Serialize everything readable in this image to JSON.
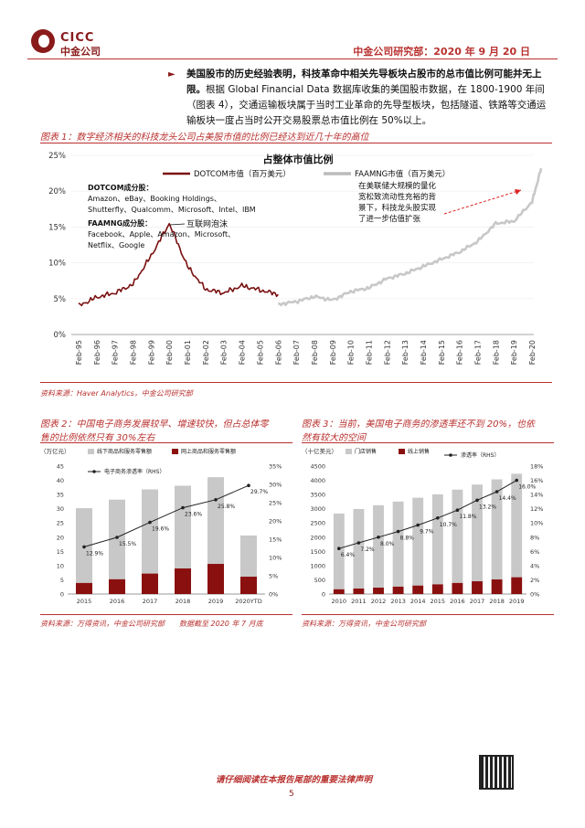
{
  "header": {
    "logo_en": "CICC",
    "logo_cn": "中金公司",
    "date_line": "中金公司研究部：2020 年 9 月 20 日"
  },
  "intro": {
    "bold": "美国股市的历史经验表明，科技革命中相关先导板块占股市的总市值比例可能并无上限。",
    "text": "根据 Global Financial Data 数据库收集的美国股市数据，在 1800-1900 年间（图表 4），交通运输板块属于当时工业革命的先导型板块，包括隧道、铁路等交通运输板块一度占当时公开交易股票总市值比例在 50%以上。"
  },
  "fig1": {
    "caption": "图表 1：数字经济相关的科技龙头公司占美股市值的比例已经达到近几十年的高位",
    "source": "资料来源：Haver Analytics，中金公司研究部",
    "annotation_right": [
      "在美联储大规模的量化",
      "宽松致流动性充裕的背",
      "景下，科技龙头股实现",
      "了进一步估值扩张"
    ],
    "dotcom_heading": "DOTCOM成分股：",
    "dotcom_list": [
      "Amazon、eBay、Booking Holdings、",
      "Shutterfly、Qualcomm、Microsoft、Intel、IBM"
    ],
    "faamng_heading": "FAAMNG成分股：",
    "faamng_list": [
      "Facebook、Apple、Amazon、Microsoft、",
      "Netflix、Google"
    ],
    "bubble_label": "互联网泡沫"
  },
  "fig2": {
    "caption": [
      "图表 2：中国电子商务发展较早、增速较快，但占总体零",
      "售的比例依然只有 30%左右"
    ],
    "unit_left": "（万亿元）",
    "source": "资料来源：万得资讯，中金公司研究部　　数据截至 2020 年 7 月底"
  },
  "fig3": {
    "caption": [
      "图表 3：当前，美国电子商务的渗透率还不到 20%，也依",
      "然有较大的空间"
    ],
    "unit_left": "（十亿美元）",
    "source": "资料来源：万得资讯，中金公司研究部"
  },
  "footer": {
    "notice": "请仔细阅读在本报告尾部的重要法律声明",
    "page": "5"
  },
  "chart_data": [
    {
      "type": "line",
      "title": "占整体市值比例",
      "series": [
        {
          "name": "DOTCOM市值（百万美元）",
          "color": "#7a1010",
          "x": [
            "Feb-95",
            "Feb-96",
            "Feb-97",
            "Feb-98",
            "Feb-99",
            "Feb-00",
            "Feb-01",
            "Feb-02",
            "Feb-03",
            "Feb-04",
            "Feb-05",
            "Feb-06"
          ],
          "values": [
            4.0,
            5.2,
            5.8,
            7.0,
            11.0,
            15.5,
            9.5,
            6.3,
            5.8,
            6.8,
            6.2,
            5.6
          ]
        },
        {
          "name": "FAAMNG市值（百万美元）",
          "color": "#c8c8c8",
          "x": [
            "Feb-06",
            "Feb-07",
            "Feb-08",
            "Feb-09",
            "Feb-10",
            "Feb-11",
            "Feb-12",
            "Feb-13",
            "Feb-14",
            "Feb-15",
            "Feb-16",
            "Feb-17",
            "Feb-18",
            "Feb-19",
            "Feb-20",
            "Aug-20"
          ],
          "values": [
            4.2,
            4.6,
            5.3,
            4.8,
            6.0,
            6.5,
            7.8,
            8.5,
            9.5,
            10.5,
            11.5,
            13.0,
            15.5,
            15.8,
            18.5,
            23.2
          ]
        }
      ],
      "x_ticks": [
        "Feb-95",
        "Feb-96",
        "Feb-97",
        "Feb-98",
        "Feb-99",
        "Feb-00",
        "Feb-01",
        "Feb-02",
        "Feb-03",
        "Feb-04",
        "Feb-05",
        "Feb-06",
        "Feb-07",
        "Feb-08",
        "Feb-09",
        "Feb-10",
        "Feb-11",
        "Feb-12",
        "Feb-13",
        "Feb-14",
        "Feb-15",
        "Feb-16",
        "Feb-17",
        "Feb-18",
        "Feb-19",
        "Feb-20"
      ],
      "y_ticks": [
        "0%",
        "5%",
        "10%",
        "15%",
        "20%",
        "25%"
      ],
      "ylim": [
        0,
        25
      ]
    },
    {
      "type": "bar",
      "categories": [
        "2015",
        "2016",
        "2017",
        "2018",
        "2019",
        "2020YTD"
      ],
      "series": [
        {
          "name": "线下商品和服务零售额",
          "color": "#c8c8c8",
          "values": [
            26.3,
            28.0,
            29.6,
            29.1,
            30.5,
            14.5
          ]
        },
        {
          "name": "网上商品和服务零售额",
          "color": "#8a1010",
          "values": [
            3.9,
            5.2,
            7.2,
            9.0,
            10.6,
            6.1
          ]
        },
        {
          "name": "电子商务渗透率（RHS）",
          "color": "#222222",
          "axis": "right",
          "values": [
            12.9,
            15.5,
            19.6,
            23.6,
            25.8,
            29.7
          ],
          "labels": [
            "12.9%",
            "15.5%",
            "19.6%",
            "23.6%",
            "25.8%",
            "29.7%"
          ]
        }
      ],
      "y_left_ticks": [
        "0",
        "5",
        "10",
        "15",
        "20",
        "25",
        "30",
        "35",
        "40",
        "45"
      ],
      "y_right_ticks": [
        "0%",
        "5%",
        "10%",
        "15%",
        "20%",
        "25%",
        "30%",
        "35%"
      ],
      "ylim_left": [
        0,
        45
      ],
      "ylim_right": [
        0,
        35
      ]
    },
    {
      "type": "bar",
      "categories": [
        "2010",
        "2011",
        "2012",
        "2013",
        "2014",
        "2015",
        "2016",
        "2017",
        "2018",
        "2019"
      ],
      "series": [
        {
          "name": "门店销售",
          "color": "#c8c8c8",
          "values": [
            2665,
            2797,
            2898,
            2993,
            3090,
            3166,
            3282,
            3401,
            3520,
            3640
          ]
        },
        {
          "name": "线上销售",
          "color": "#8a1010",
          "values": [
            168,
            194,
            225,
            260,
            298,
            341,
            390,
            449,
            513,
            590
          ]
        },
        {
          "name": "渗透率（RHS）",
          "color": "#222222",
          "axis": "right",
          "values": [
            6.4,
            7.2,
            8.0,
            8.8,
            9.7,
            10.7,
            11.8,
            13.2,
            14.4,
            16.0
          ],
          "labels": [
            "6.4%",
            "7.2%",
            "8.0%",
            "8.8%",
            "9.7%",
            "10.7%",
            "11.8%",
            "13.2%",
            "14.4%",
            "16.0%"
          ]
        }
      ],
      "y_left_ticks": [
        "0",
        "500",
        "1000",
        "1500",
        "2000",
        "2500",
        "3000",
        "3500",
        "4000",
        "4500"
      ],
      "y_right_ticks": [
        "0%",
        "2%",
        "4%",
        "6%",
        "8%",
        "10%",
        "12%",
        "14%",
        "16%",
        "18%"
      ],
      "ylim_left": [
        0,
        4500
      ],
      "ylim_right": [
        0,
        18
      ]
    }
  ]
}
